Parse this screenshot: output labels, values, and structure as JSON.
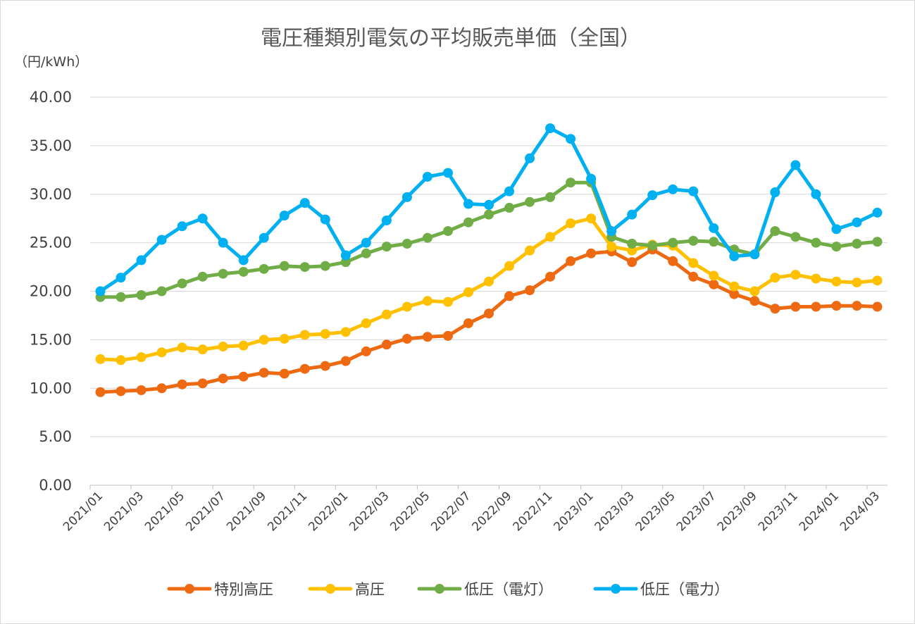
{
  "chart_data": {
    "type": "line",
    "title": "電圧種類別電気の平均販売単価（全国）",
    "ylabel": "（円/kWh）",
    "xlabel": "",
    "ylim": [
      0,
      40
    ],
    "yticks": [
      "0.00",
      "5.00",
      "10.00",
      "15.00",
      "20.00",
      "25.00",
      "30.00",
      "35.00",
      "40.00"
    ],
    "ytick_values": [
      0,
      5,
      10,
      15,
      20,
      25,
      30,
      35,
      40
    ],
    "grid": true,
    "legend_position": "bottom",
    "x": [
      "2021/01",
      "2021/02",
      "2021/03",
      "2021/04",
      "2021/05",
      "2021/06",
      "2021/07",
      "2021/08",
      "2021/09",
      "2021/10",
      "2021/11",
      "2021/12",
      "2022/01",
      "2022/02",
      "2022/03",
      "2022/04",
      "2022/05",
      "2022/06",
      "2022/07",
      "2022/08",
      "2022/09",
      "2022/10",
      "2022/11",
      "2022/12",
      "2023/01",
      "2023/02",
      "2023/03",
      "2023/04",
      "2023/05",
      "2023/06",
      "2023/07",
      "2023/08",
      "2023/09",
      "2023/10",
      "2023/11",
      "2023/12",
      "2024/01",
      "2024/02",
      "2024/03"
    ],
    "xtick_labels": [
      "2021/01",
      "2021/03",
      "2021/05",
      "2021/07",
      "2021/09",
      "2021/11",
      "2022/01",
      "2022/03",
      "2022/05",
      "2022/07",
      "2022/09",
      "2022/11",
      "2023/01",
      "2023/03",
      "2023/05",
      "2023/07",
      "2023/09",
      "2023/11",
      "2024/01",
      "2024/03"
    ],
    "series": [
      {
        "name": "特別高圧",
        "color": "#ED6A12",
        "values": [
          9.6,
          9.7,
          9.8,
          10.0,
          10.4,
          10.5,
          11.0,
          11.2,
          11.6,
          11.5,
          12.0,
          12.3,
          12.8,
          13.8,
          14.5,
          15.1,
          15.3,
          15.4,
          16.7,
          17.7,
          19.5,
          20.1,
          21.5,
          23.1,
          23.9,
          24.1,
          23.0,
          24.3,
          23.1,
          21.5,
          20.7,
          19.7,
          19.0,
          18.2,
          18.4,
          18.4,
          18.5,
          18.5,
          18.4
        ]
      },
      {
        "name": "高圧",
        "color": "#FFC000",
        "values": [
          13.0,
          12.9,
          13.2,
          13.7,
          14.2,
          14.0,
          14.3,
          14.4,
          15.0,
          15.1,
          15.5,
          15.6,
          15.8,
          16.7,
          17.6,
          18.4,
          19.0,
          18.9,
          19.9,
          21.0,
          22.6,
          24.2,
          25.6,
          27.0,
          27.5,
          24.6,
          24.2,
          24.8,
          24.7,
          22.9,
          21.6,
          20.5,
          20.0,
          21.4,
          21.7,
          21.3,
          21.0,
          20.9,
          21.1
        ]
      },
      {
        "name": "低圧（電灯）",
        "color": "#70AD47",
        "values": [
          19.4,
          19.4,
          19.6,
          20.0,
          20.8,
          21.5,
          21.8,
          22.0,
          22.3,
          22.6,
          22.5,
          22.6,
          23.0,
          23.9,
          24.6,
          24.9,
          25.5,
          26.2,
          27.1,
          27.9,
          28.6,
          29.2,
          29.7,
          31.2,
          31.2,
          25.6,
          24.9,
          24.7,
          25.0,
          25.2,
          25.1,
          24.3,
          23.8,
          26.2,
          25.6,
          25.0,
          24.6,
          24.9,
          25.1
        ]
      },
      {
        "name": "低圧（電力）",
        "color": "#00B0F0",
        "values": [
          20.0,
          21.4,
          23.2,
          25.3,
          26.7,
          27.5,
          25.0,
          23.2,
          25.5,
          27.8,
          29.1,
          27.4,
          23.7,
          25.0,
          27.3,
          29.7,
          31.8,
          32.2,
          29.0,
          28.9,
          30.3,
          33.7,
          36.8,
          35.7,
          31.6,
          26.2,
          27.9,
          29.9,
          30.5,
          30.3,
          26.5,
          23.6,
          23.8,
          30.2,
          33.0,
          30.0,
          26.4,
          27.1,
          28.1
        ]
      }
    ]
  }
}
